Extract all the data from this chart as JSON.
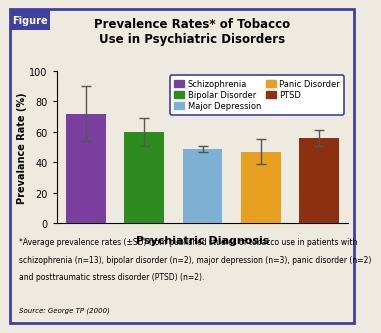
{
  "title": "Prevalence Rates* of Tobacco\nUse in Psychiatric Disorders",
  "xlabel": "Psychiatric Diagnosis",
  "ylabel": "Prevalance Rate (%)",
  "categories": [
    "Schizophrenia",
    "Bipolar Disorder",
    "Major Depression",
    "Panic Disorder",
    "PTSD"
  ],
  "values": [
    72,
    60,
    49,
    47,
    56
  ],
  "errors": [
    18,
    9,
    2,
    8,
    5
  ],
  "bar_colors": [
    "#7B3FA0",
    "#2E8B20",
    "#7EB0D4",
    "#E8A020",
    "#8B3010"
  ],
  "legend_labels": [
    "Schizophrenia",
    "Bipolar Disorder",
    "Major Depression",
    "Panic Disorder",
    "PTSD"
  ],
  "legend_colors": [
    "#7B3FA0",
    "#2E8B20",
    "#7EB0D4",
    "#E8A020",
    "#8B3010"
  ],
  "ylim": [
    0,
    100
  ],
  "yticks": [
    0,
    20,
    40,
    60,
    80,
    100
  ],
  "figure_bg": "#EEEAE0",
  "plot_bg": "#EEEAE0",
  "border_color": "#4040A0",
  "footnote1": "*Average prevalence rates (±SD) from published studies of tobacco use in patients with",
  "footnote2": "schizophrenia (n=13), bipolar disorder (n=2), major depression (n=3), panic disorder (n=2)",
  "footnote3": "and posttraumatic stress disorder (PTSD) (n=2).",
  "source": "Source: George TP (2000)"
}
